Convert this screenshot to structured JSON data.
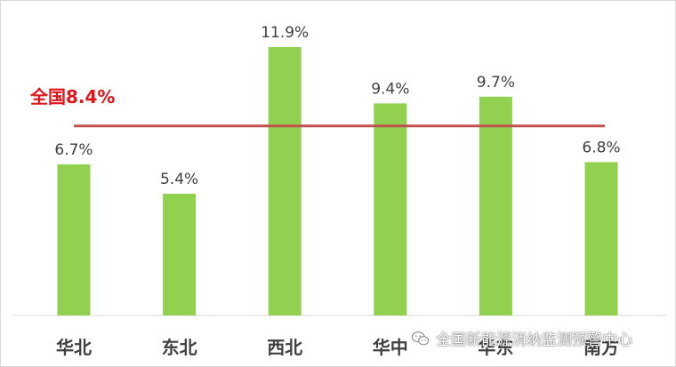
{
  "chart_data": {
    "type": "bar",
    "categories": [
      "华北",
      "东北",
      "西北",
      "华中",
      "华东",
      "南方"
    ],
    "values": [
      6.7,
      5.4,
      11.9,
      9.4,
      9.7,
      6.8
    ],
    "value_labels": [
      "6.7%",
      "5.4%",
      "11.9%",
      "9.4%",
      "9.7%",
      "6.8%"
    ],
    "reference_line": {
      "label": "全国8.4%",
      "value": 8.4
    },
    "ylim": [
      0,
      13
    ],
    "grid": false,
    "colors": {
      "bar": "#92d050",
      "reference": "#c0504d",
      "reference_label": "#e0161b"
    }
  },
  "watermark": {
    "text": "全国新能源消纳监测预警中心",
    "icon": "wechat-icon"
  }
}
